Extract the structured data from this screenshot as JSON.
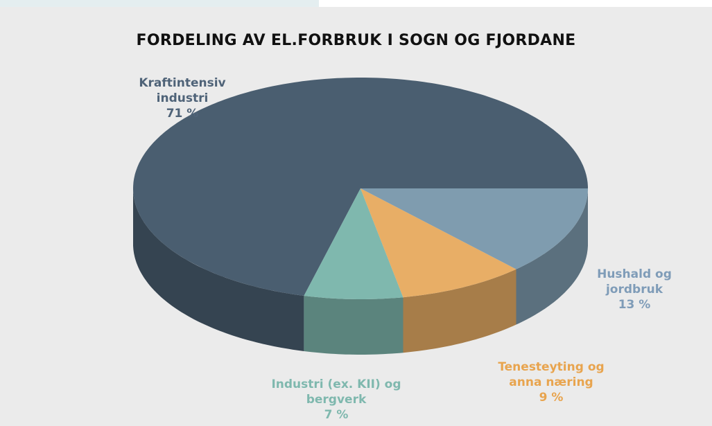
{
  "chart_data": {
    "type": "pie",
    "title": "FORDELING AV EL.FORBRUK I SOGN OG FJORDANE",
    "categories": [
      "Kraftintensiv industri",
      "Industri (ex. KII) og bergverk",
      "Tenesteyting og anna næring",
      "Hushald og jordbruk"
    ],
    "values": [
      71,
      7,
      9,
      13
    ],
    "value_labels": [
      "71 %",
      "7 %",
      "9 %",
      "13 %"
    ],
    "colors": [
      "#4a5e70",
      "#7fb8ae",
      "#e8ae66",
      "#7f9caf"
    ],
    "label_colors": [
      "#4f6378",
      "#7fb8ae",
      "#e8a44e",
      "#7f9cb8"
    ]
  }
}
